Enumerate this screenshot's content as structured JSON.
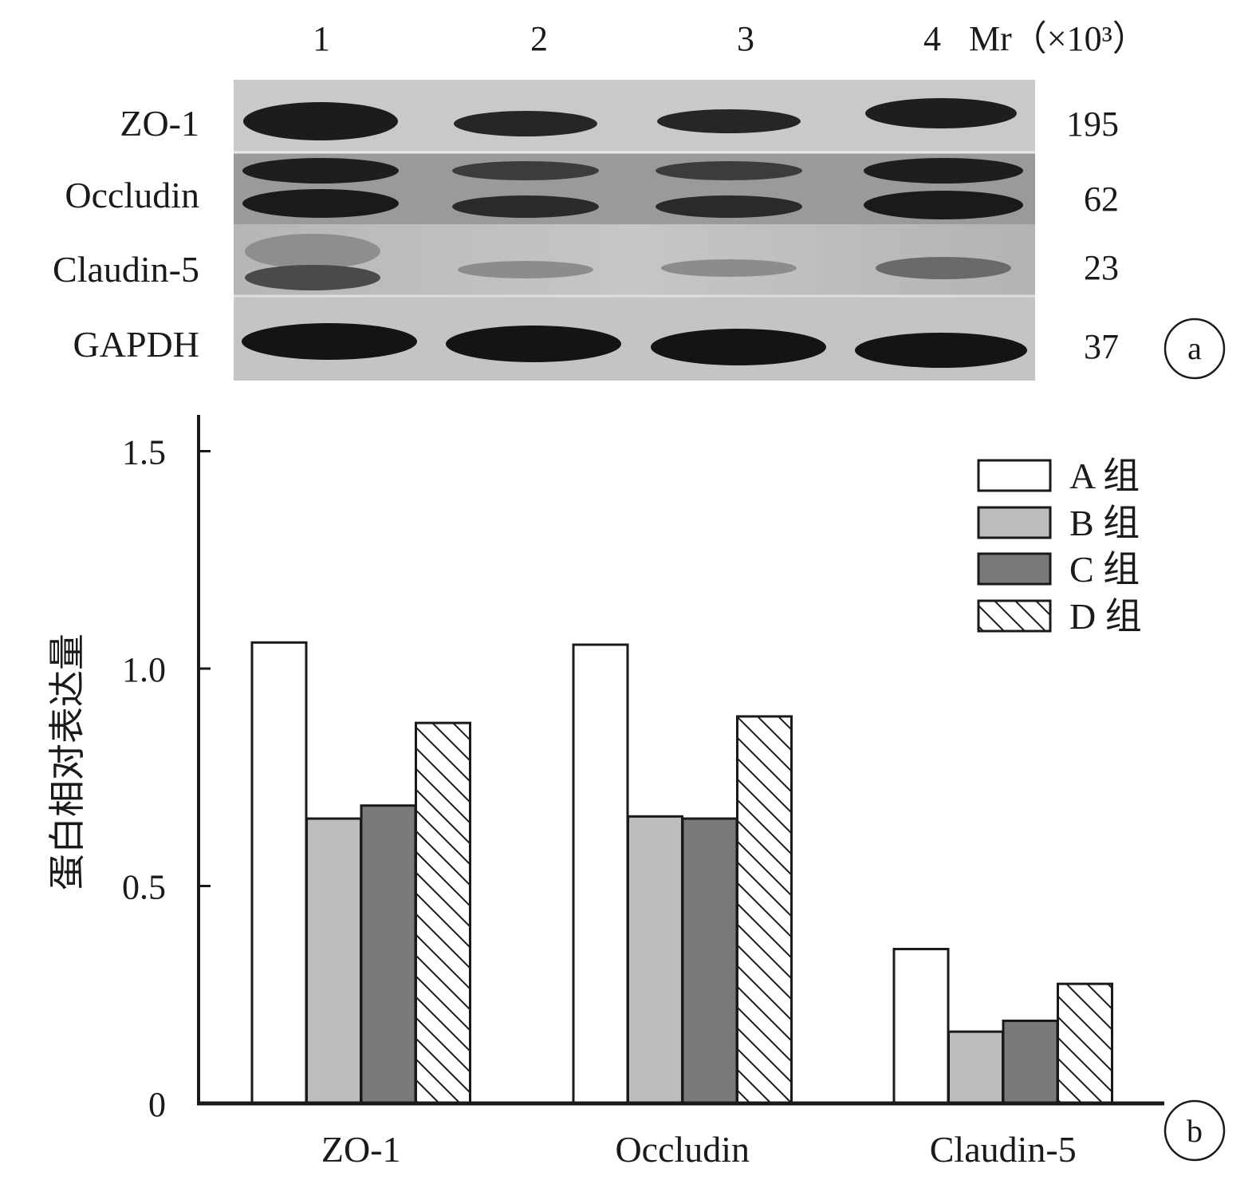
{
  "panel_a": {
    "lane_labels": [
      "1",
      "2",
      "3",
      "4"
    ],
    "mr_label": "Mr（×10³）",
    "rows": [
      {
        "protein": "ZO-1",
        "mr": "195"
      },
      {
        "protein": "Occludin",
        "mr": "62"
      },
      {
        "protein": "Claudin-5",
        "mr": "23"
      },
      {
        "protein": "GAPDH",
        "mr": "37"
      }
    ],
    "panel_label": "a"
  },
  "panel_b_label": "b",
  "chart_data": {
    "type": "bar",
    "categories": [
      "ZO-1",
      "Occludin",
      "Claudin-5"
    ],
    "series": [
      {
        "name": "A 组",
        "values": [
          1.06,
          1.055,
          0.355
        ],
        "fill": "#ffffff",
        "pattern": "none"
      },
      {
        "name": "B 组",
        "values": [
          0.655,
          0.66,
          0.165
        ],
        "fill": "#bdbdbd",
        "pattern": "none"
      },
      {
        "name": "C 组",
        "values": [
          0.685,
          0.655,
          0.19
        ],
        "fill": "#7a7a7a",
        "pattern": "none"
      },
      {
        "name": "D 组",
        "values": [
          0.875,
          0.89,
          0.275
        ],
        "fill": "#ffffff",
        "pattern": "diagonal-hatch"
      }
    ],
    "ylabel": "蛋白相对表达量",
    "xlabel": "",
    "ylim": [
      0,
      1.6
    ],
    "yticks": [
      0,
      0.5,
      1.0,
      1.5
    ],
    "ytick_labels": [
      "0",
      "0.5",
      "1.0",
      "1.5"
    ],
    "legend_position": "top-right",
    "grid": false
  }
}
